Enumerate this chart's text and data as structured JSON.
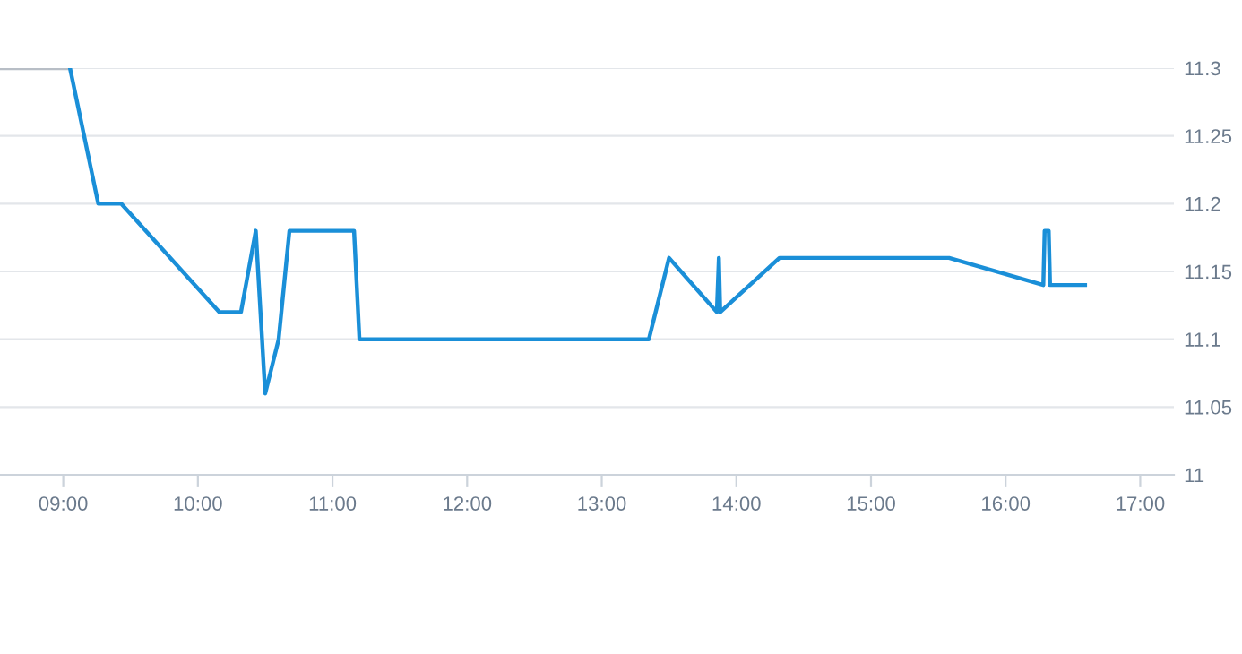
{
  "chart_data": {
    "type": "line",
    "series": [
      {
        "color": "#b8bec6",
        "x": [
          8.53,
          9.05
        ],
        "values": [
          11.3,
          11.3
        ]
      },
      {
        "color": "#1a8fd8",
        "x": [
          9.05,
          9.26,
          9.43,
          10.16,
          10.32,
          10.43,
          10.5,
          10.6,
          10.68,
          11.16,
          11.2,
          13.35,
          13.5,
          13.855,
          13.87,
          13.88,
          14.32,
          15.58,
          16.28,
          16.29,
          16.32,
          16.33,
          16.59
        ],
        "values": [
          11.3,
          11.2,
          11.2,
          11.12,
          11.12,
          11.18,
          11.06,
          11.1,
          11.18,
          11.18,
          11.1,
          11.1,
          11.16,
          11.12,
          11.16,
          11.12,
          11.16,
          11.16,
          11.14,
          11.18,
          11.18,
          11.14,
          11.14
        ]
      }
    ],
    "xlim": [
      8.53,
      17.25
    ],
    "xticks": [
      {
        "value": 9,
        "label": "09:00"
      },
      {
        "value": 10,
        "label": "10:00"
      },
      {
        "value": 11,
        "label": "11:00"
      },
      {
        "value": 12,
        "label": "12:00"
      },
      {
        "value": 13,
        "label": "13:00"
      },
      {
        "value": 14,
        "label": "14:00"
      },
      {
        "value": 15,
        "label": "15:00"
      },
      {
        "value": 16,
        "label": "16:00"
      },
      {
        "value": 17,
        "label": "17:00"
      }
    ],
    "ylim": [
      11,
      11.3
    ],
    "yticks": [
      11,
      11.05,
      11.1,
      11.15,
      11.2,
      11.25,
      11.3
    ],
    "grid": "y",
    "marker": "none",
    "line_style": "solid"
  }
}
